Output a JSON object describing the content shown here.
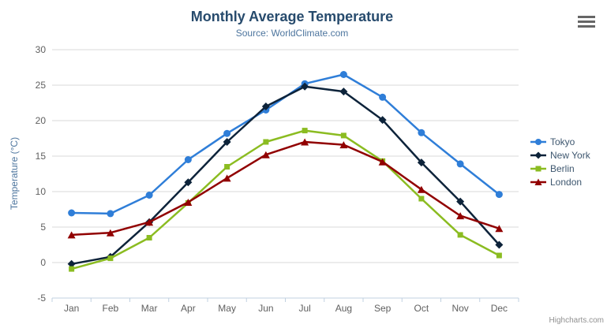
{
  "chart_data": {
    "type": "line",
    "title": "Monthly Average Temperature",
    "subtitle": "Source: WorldClimate.com",
    "xlabel": "",
    "ylabel": "Temperature (°C)",
    "categories": [
      "Jan",
      "Feb",
      "Mar",
      "Apr",
      "May",
      "Jun",
      "Jul",
      "Aug",
      "Sep",
      "Oct",
      "Nov",
      "Dec"
    ],
    "ylim": [
      -5,
      30
    ],
    "y_ticks": [
      -5,
      0,
      5,
      10,
      15,
      20,
      25,
      30
    ],
    "grid": "horizontal",
    "legend_position": "right",
    "series": [
      {
        "name": "Tokyo",
        "color": "#2f7ed8",
        "marker": "circle",
        "values": [
          7.0,
          6.9,
          9.5,
          14.5,
          18.2,
          21.5,
          25.2,
          26.5,
          23.3,
          18.3,
          13.9,
          9.6
        ]
      },
      {
        "name": "New York",
        "color": "#0d233a",
        "marker": "diamond",
        "values": [
          -0.2,
          0.8,
          5.7,
          11.3,
          17.0,
          22.0,
          24.8,
          24.1,
          20.1,
          14.1,
          8.6,
          2.5
        ]
      },
      {
        "name": "Berlin",
        "color": "#8bbc21",
        "marker": "square",
        "values": [
          -0.9,
          0.6,
          3.5,
          8.4,
          13.5,
          17.0,
          18.6,
          17.9,
          14.3,
          9.0,
          3.9,
          1.0
        ]
      },
      {
        "name": "London",
        "color": "#910000",
        "marker": "triangle",
        "values": [
          3.9,
          4.2,
          5.7,
          8.5,
          11.9,
          15.2,
          17.0,
          16.6,
          14.2,
          10.3,
          6.6,
          4.8
        ]
      }
    ]
  },
  "credits": {
    "label": "Highcharts.com"
  },
  "export_menu": {
    "icon": "hamburger-icon"
  },
  "style": {
    "grid_color": "#d8d8d8",
    "axis_color": "#c0d0e0",
    "tick_label_color": "#606060",
    "title_color": "#274b6d",
    "subtitle_color": "#4d759e",
    "legend_text_color": "#3e576f",
    "credits_color": "#909090"
  }
}
